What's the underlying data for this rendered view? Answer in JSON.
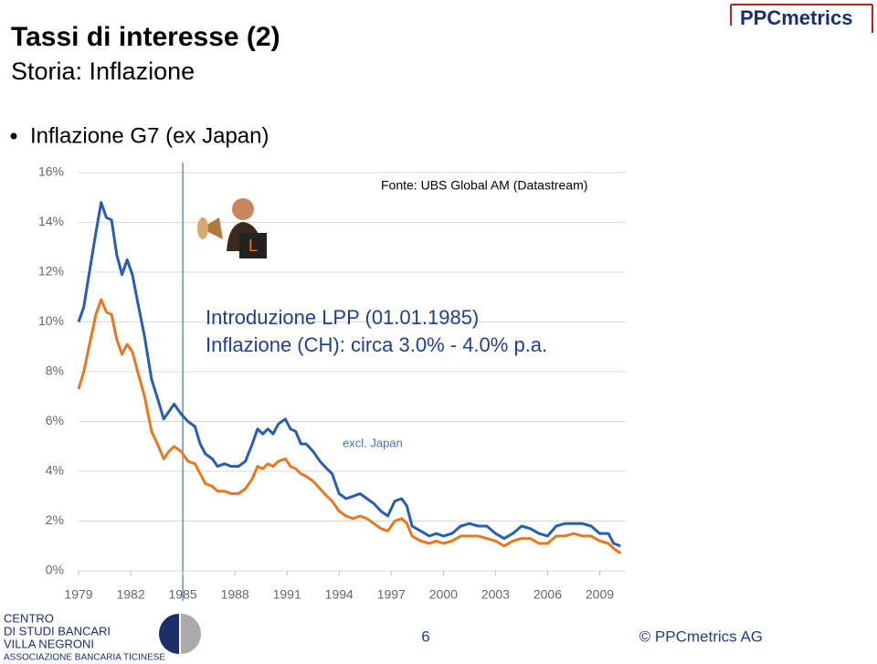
{
  "header": {
    "title": "Tassi di interesse (2)",
    "subtitle": "Storia: Inflazione",
    "logo": "PPCmetrics"
  },
  "bullet": "Inflazione G7 (ex Japan)",
  "chart_data": {
    "type": "line",
    "source": "Fonte: UBS Global AM (Datastream)",
    "annotations": [
      "Introduzione LPP (01.01.1985)",
      "Inflazione (CH): circa 3.0% - 4.0% p.a.",
      "excl. Japan"
    ],
    "vline": 1985,
    "x": [
      1979.0,
      1979.3,
      1979.6,
      1980.0,
      1980.3,
      1980.6,
      1980.9,
      1981.2,
      1981.5,
      1981.8,
      1982.1,
      1982.4,
      1982.8,
      1983.2,
      1983.6,
      1983.9,
      1984.2,
      1984.5,
      1984.9,
      1985.3,
      1985.7,
      1986.0,
      1986.3,
      1986.7,
      1987.0,
      1987.4,
      1987.8,
      1988.2,
      1988.6,
      1989.0,
      1989.3,
      1989.6,
      1989.9,
      1990.2,
      1990.5,
      1990.9,
      1991.2,
      1991.5,
      1991.8,
      1992.1,
      1992.5,
      1992.9,
      1993.3,
      1993.6,
      1994.0,
      1994.4,
      1994.8,
      1995.2,
      1995.6,
      1996.0,
      1996.4,
      1996.8,
      1997.2,
      1997.6,
      1997.9,
      1998.2,
      1998.7,
      1999.2,
      1999.6,
      2000.0,
      2000.5,
      2001.0,
      2001.5,
      2002.0,
      2002.5,
      2003.0,
      2003.5,
      2004.0,
      2004.5,
      2005.0,
      2005.5,
      2006.0,
      2006.5,
      2007.0,
      2007.5,
      2008.0,
      2008.5,
      2009.0,
      2009.5,
      2009.8,
      2010.2
    ],
    "series": [
      {
        "color": "#2a5db0",
        "values": [
          10.0,
          10.6,
          11.9,
          13.6,
          14.8,
          14.2,
          14.1,
          12.7,
          11.9,
          12.5,
          11.9,
          10.8,
          9.4,
          7.7,
          6.8,
          6.1,
          6.4,
          6.7,
          6.3,
          6.0,
          5.8,
          5.1,
          4.7,
          4.5,
          4.2,
          4.3,
          4.2,
          4.2,
          4.4,
          5.1,
          5.7,
          5.5,
          5.7,
          5.5,
          5.9,
          6.1,
          5.7,
          5.6,
          5.1,
          5.1,
          4.8,
          4.4,
          4.1,
          3.9,
          3.1,
          2.9,
          3.0,
          3.1,
          2.9,
          2.7,
          2.4,
          2.2,
          2.8,
          2.9,
          2.6,
          1.8,
          1.6,
          1.4,
          1.5,
          1.4,
          1.5,
          1.8,
          1.9,
          1.8,
          1.8,
          1.5,
          1.3,
          1.5,
          1.8,
          1.7,
          1.5,
          1.4,
          1.8,
          1.9,
          1.9,
          1.9,
          1.8,
          1.5,
          1.5,
          1.1,
          1.0
        ]
      },
      {
        "color": "#e87722",
        "values": [
          7.3,
          8.0,
          9.0,
          10.3,
          10.9,
          10.4,
          10.3,
          9.3,
          8.7,
          9.1,
          8.8,
          8.0,
          7.0,
          5.6,
          5.0,
          4.5,
          4.8,
          5.0,
          4.8,
          4.4,
          4.3,
          3.9,
          3.5,
          3.4,
          3.2,
          3.2,
          3.1,
          3.1,
          3.3,
          3.7,
          4.2,
          4.1,
          4.3,
          4.2,
          4.4,
          4.5,
          4.2,
          4.1,
          3.9,
          3.8,
          3.6,
          3.3,
          3.0,
          2.8,
          2.4,
          2.2,
          2.1,
          2.2,
          2.1,
          1.9,
          1.7,
          1.6,
          2.0,
          2.1,
          1.9,
          1.4,
          1.2,
          1.1,
          1.2,
          1.1,
          1.2,
          1.4,
          1.4,
          1.4,
          1.3,
          1.2,
          1.0,
          1.2,
          1.3,
          1.3,
          1.1,
          1.1,
          1.4,
          1.4,
          1.5,
          1.4,
          1.4,
          1.2,
          1.1,
          0.9,
          0.7
        ]
      }
    ],
    "xlim": [
      1979,
      2010.5
    ],
    "xticks": [
      1979,
      1982,
      1985,
      1988,
      1991,
      1994,
      1997,
      2000,
      2003,
      2006,
      2009
    ],
    "ylim": [
      0,
      16
    ],
    "yticks": [
      {
        "value": 0,
        "label": "0%"
      },
      {
        "value": 2,
        "label": "2%"
      },
      {
        "value": 4,
        "label": "4%"
      },
      {
        "value": 6,
        "label": "6%"
      },
      {
        "value": 8,
        "label": "8%"
      },
      {
        "value": 10,
        "label": "10%"
      },
      {
        "value": 12,
        "label": "12%"
      },
      {
        "value": 14,
        "label": "14%"
      },
      {
        "value": 16,
        "label": "16%"
      }
    ],
    "grid": true
  },
  "footer": {
    "org": [
      "CENTRO",
      "DI STUDI BANCARI",
      "VILLA NEGRONI",
      "ASSOCIAZIONE BANCARIA TICINESE"
    ],
    "page": "6",
    "copyright": "© PPCmetrics AG"
  }
}
